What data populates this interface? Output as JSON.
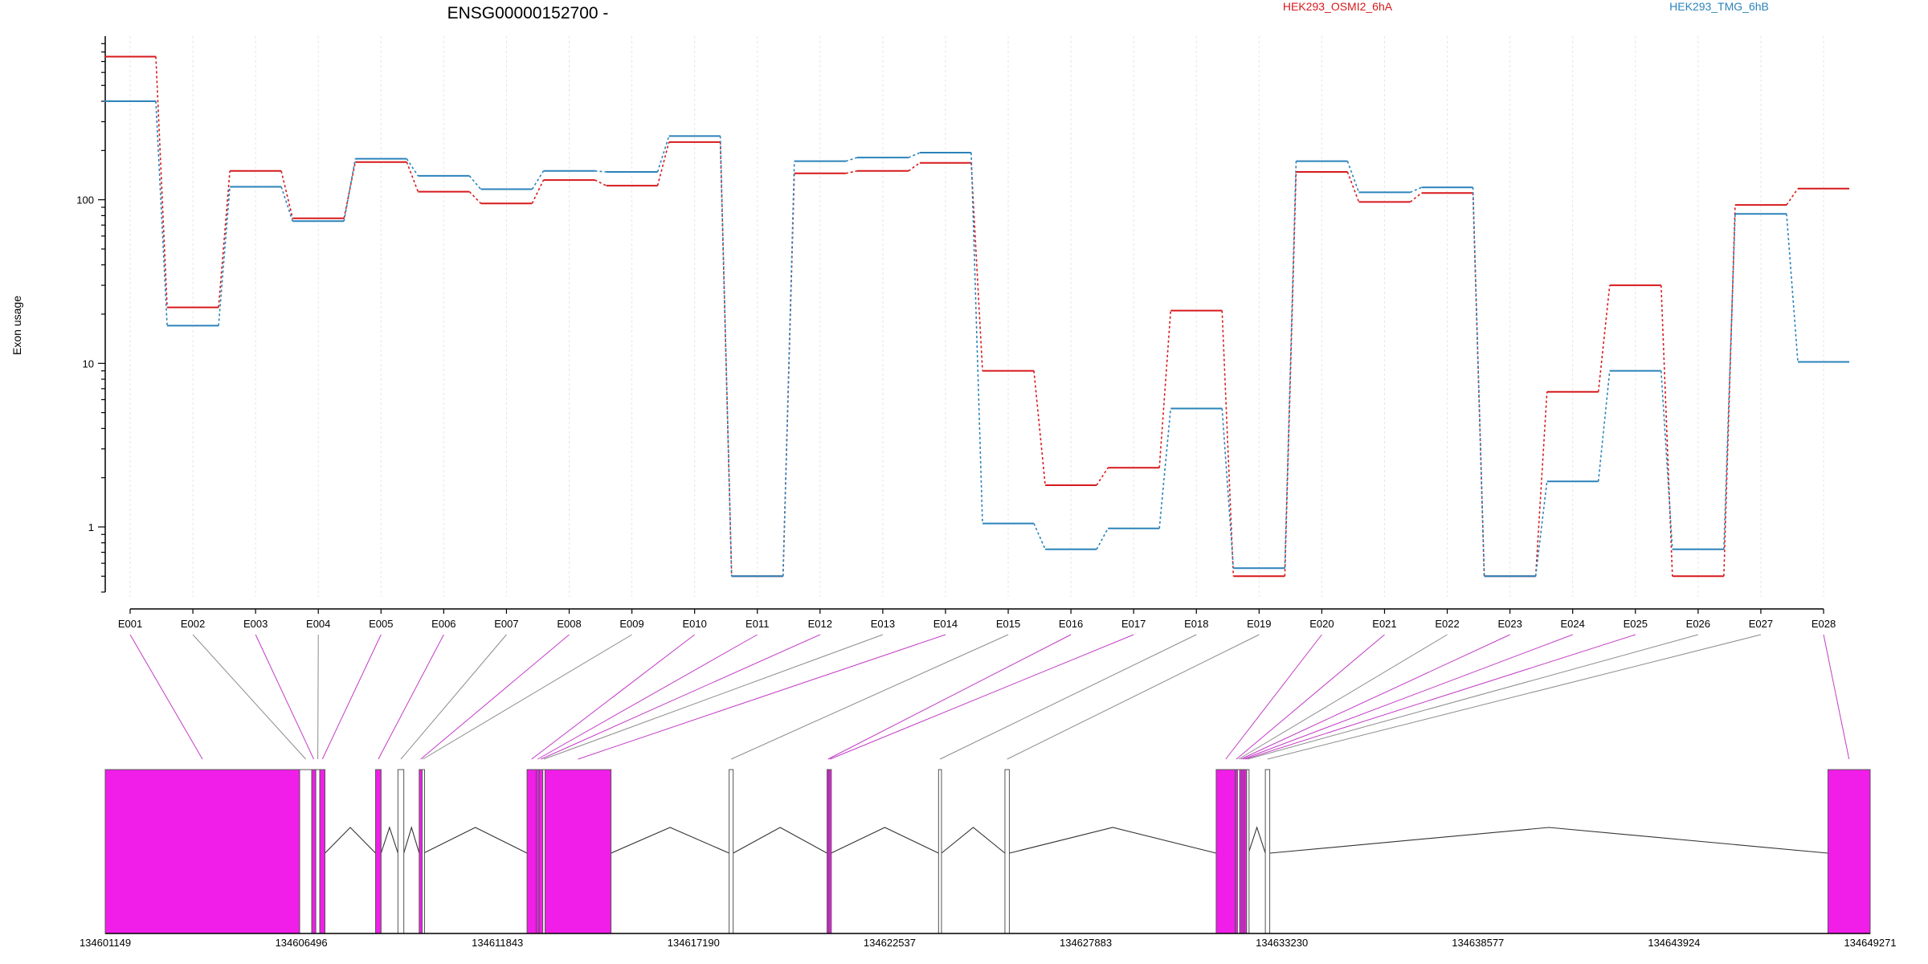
{
  "chart_data": {
    "type": "line",
    "title": "ENSG00000152700 -",
    "ylabel": "Exon usage",
    "yscale": "log",
    "ylim": [
      0.4,
      1000
    ],
    "yticks": [
      {
        "value": 1,
        "label": "1"
      },
      {
        "value": 10,
        "label": "10"
      },
      {
        "value": 100,
        "label": "100"
      }
    ],
    "grid": "vertical",
    "legend_position": "top",
    "categories": [
      "E001",
      "E002",
      "E003",
      "E004",
      "E005",
      "E006",
      "E007",
      "E008",
      "E009",
      "E010",
      "E011",
      "E012",
      "E013",
      "E014",
      "E015",
      "E016",
      "E017",
      "E018",
      "E019",
      "E020",
      "E021",
      "E022",
      "E023",
      "E024",
      "E025",
      "E026",
      "E027",
      "E028"
    ],
    "series": [
      {
        "name": "HEK293_OSMI2_6hA",
        "color": "#d7191c",
        "values": [
          750,
          22,
          150,
          77,
          170,
          112,
          95,
          132,
          122,
          225,
          0.5,
          145,
          150,
          168,
          9,
          1.8,
          2.3,
          21,
          0.5,
          148,
          97,
          110,
          0.5,
          6.7,
          30,
          0.5,
          93,
          117
        ]
      },
      {
        "name": "HEK293_TMG_6hB",
        "color": "#2b83ba",
        "values": [
          400,
          17,
          120,
          74,
          178,
          140,
          116,
          150,
          148,
          245,
          0.5,
          172,
          181,
          194,
          1.05,
          0.73,
          0.98,
          5.3,
          0.56,
          172,
          111,
          119,
          0.5,
          1.9,
          9,
          0.73,
          82,
          10.2
        ]
      }
    ],
    "gene_model": {
      "coordinate_labels": [
        "134601149",
        "134606496",
        "134611843",
        "134617190",
        "134622537",
        "134627883",
        "134633230",
        "134638577",
        "134643924",
        "134649271"
      ],
      "coordinate_values": [
        134601149,
        134606496,
        134611843,
        134617190,
        134622537,
        134627883,
        134633230,
        134638577,
        134643924,
        134649271
      ],
      "range": [
        134601149,
        134649271
      ],
      "highlight_color": "#f01ee8",
      "exons": [
        {
          "id": "E001",
          "start": 134601149,
          "end": 134606450,
          "sig": true
        },
        {
          "id": "E002",
          "start": 134606450,
          "end": 134606780,
          "sig": false
        },
        {
          "id": "E003",
          "start": 134606780,
          "end": 134606890,
          "sig": true
        },
        {
          "id": "E004",
          "start": 134606890,
          "end": 134607000,
          "sig": false
        },
        {
          "id": "E005",
          "start": 134607000,
          "end": 134607140,
          "sig": true
        },
        {
          "id": "E006",
          "start": 134608520,
          "end": 134608670,
          "sig": true
        },
        {
          "id": "E007",
          "start": 134609130,
          "end": 134609290,
          "sig": false
        },
        {
          "id": "E008",
          "start": 134609710,
          "end": 134609790,
          "sig": true
        },
        {
          "id": "E009",
          "start": 134609790,
          "end": 134609830,
          "sig": false
        },
        {
          "id": "E010",
          "start": 134612650,
          "end": 134612900,
          "sig": true
        },
        {
          "id": "E011",
          "start": 134612900,
          "end": 134612980,
          "sig": true
        },
        {
          "id": "E012",
          "start": 134612980,
          "end": 134613080,
          "sig": true
        },
        {
          "id": "E013",
          "start": 134613080,
          "end": 134613140,
          "sig": false
        },
        {
          "id": "E014",
          "start": 134613140,
          "end": 134614940,
          "sig": true
        },
        {
          "id": "E015",
          "start": 134618160,
          "end": 134618270,
          "sig": false
        },
        {
          "id": "E016",
          "start": 134620830,
          "end": 134620880,
          "sig": true
        },
        {
          "id": "E017",
          "start": 134620880,
          "end": 134620940,
          "sig": true
        },
        {
          "id": "E018",
          "start": 134623870,
          "end": 134623950,
          "sig": false
        },
        {
          "id": "E019",
          "start": 134625680,
          "end": 134625800,
          "sig": false
        },
        {
          "id": "E020",
          "start": 134631440,
          "end": 134631960,
          "sig": true
        },
        {
          "id": "E021",
          "start": 134631960,
          "end": 134632020,
          "sig": true
        },
        {
          "id": "E022",
          "start": 134632020,
          "end": 134632080,
          "sig": false
        },
        {
          "id": "E023",
          "start": 134632080,
          "end": 134632140,
          "sig": true
        },
        {
          "id": "E024",
          "start": 134632140,
          "end": 134632200,
          "sig": true
        },
        {
          "id": "E025",
          "start": 134632200,
          "end": 134632270,
          "sig": true
        },
        {
          "id": "E026",
          "start": 134632270,
          "end": 134632320,
          "sig": false
        },
        {
          "id": "E027",
          "start": 134632780,
          "end": 134632900,
          "sig": false
        },
        {
          "id": "E028",
          "start": 134648120,
          "end": 134649271,
          "sig": true
        }
      ]
    }
  }
}
